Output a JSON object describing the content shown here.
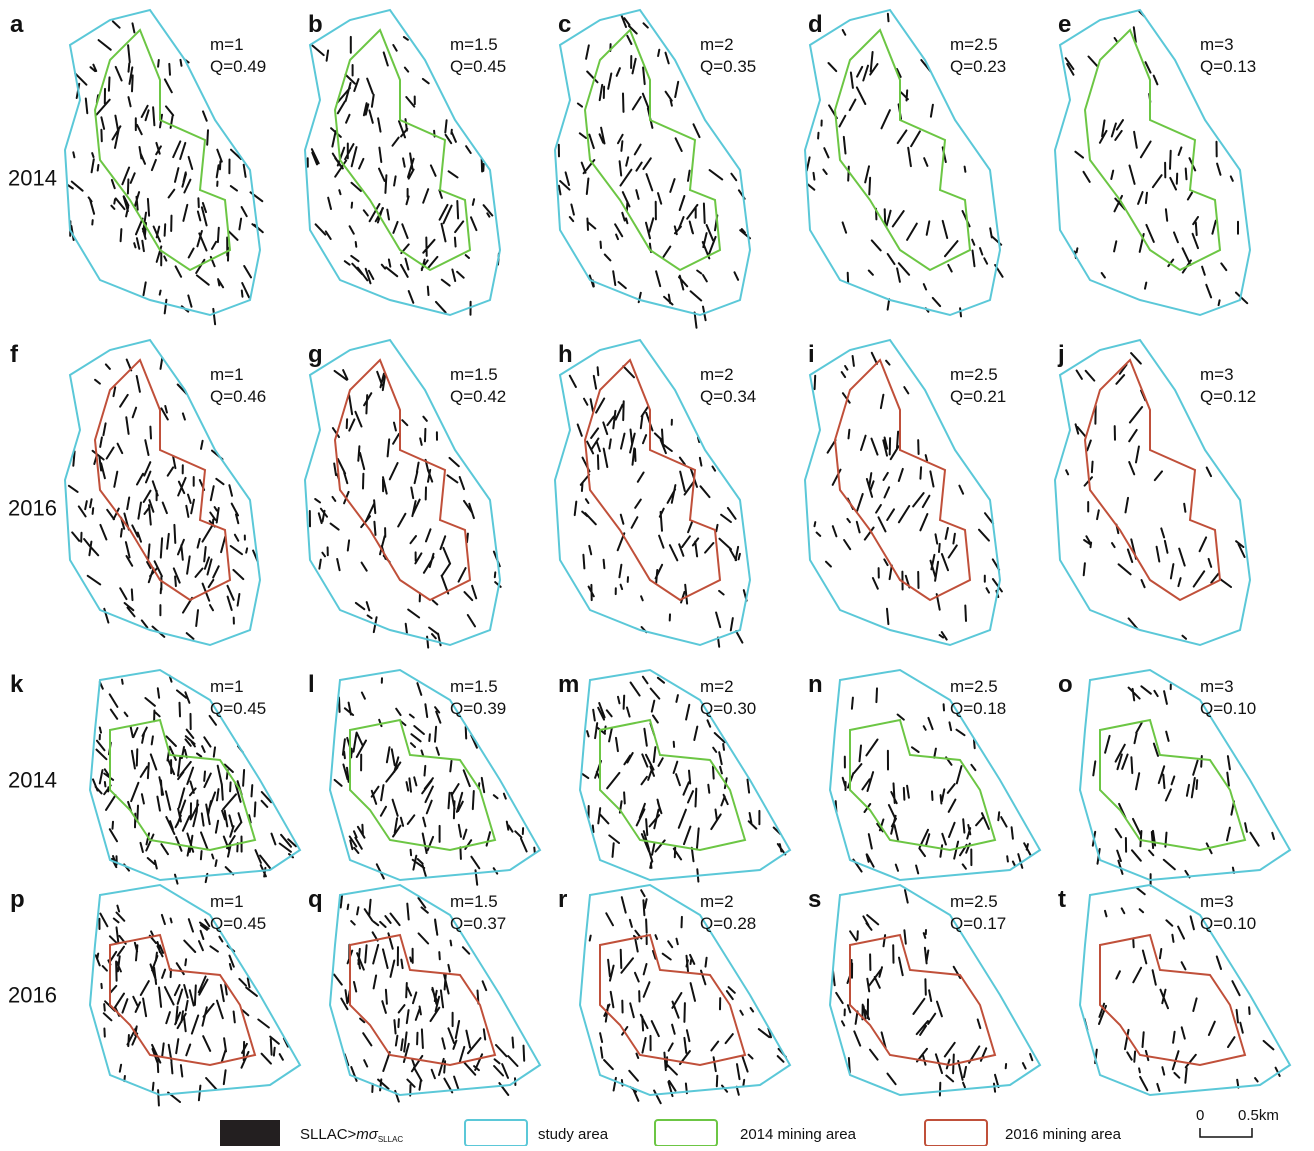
{
  "rows": [
    {
      "year": "2014",
      "panels": [
        {
          "letter": "a",
          "m": "m=1",
          "q": "Q=0.49"
        },
        {
          "letter": "b",
          "m": "m=1.5",
          "q": "Q=0.45"
        },
        {
          "letter": "c",
          "m": "m=2",
          "q": "Q=0.35"
        },
        {
          "letter": "d",
          "m": "m=2.5",
          "q": "Q=0.23"
        },
        {
          "letter": "e",
          "m": "m=3",
          "q": "Q=0.13"
        }
      ]
    },
    {
      "year": "2016",
      "panels": [
        {
          "letter": "f",
          "m": "m=1",
          "q": "Q=0.46"
        },
        {
          "letter": "g",
          "m": "m=1.5",
          "q": "Q=0.42"
        },
        {
          "letter": "h",
          "m": "m=2",
          "q": "Q=0.34"
        },
        {
          "letter": "i",
          "m": "m=2.5",
          "q": "Q=0.21"
        },
        {
          "letter": "j",
          "m": "m=3",
          "q": "Q=0.12"
        }
      ]
    },
    {
      "year": "2014",
      "panels": [
        {
          "letter": "k",
          "m": "m=1",
          "q": "Q=0.45"
        },
        {
          "letter": "l",
          "m": "m=1.5",
          "q": "Q=0.39"
        },
        {
          "letter": "m",
          "m": "m=2",
          "q": "Q=0.30"
        },
        {
          "letter": "n",
          "m": "m=2.5",
          "q": "Q=0.18"
        },
        {
          "letter": "o",
          "m": "m=3",
          "q": "Q=0.10"
        }
      ]
    },
    {
      "year": "2016",
      "panels": [
        {
          "letter": "p",
          "m": "m=1",
          "q": "Q=0.45"
        },
        {
          "letter": "q",
          "m": "m=1.5",
          "q": "Q=0.37"
        },
        {
          "letter": "r",
          "m": "m=2",
          "q": "Q=0.28"
        },
        {
          "letter": "s",
          "m": "m=2.5",
          "q": "Q=0.17"
        },
        {
          "letter": "t",
          "m": "m=3",
          "q": "Q=0.10"
        }
      ]
    }
  ],
  "legend": {
    "threshold": {
      "prefix": "SLLAC>",
      "symbol": "mσ",
      "subscript": "SLLAC"
    },
    "study": "study area",
    "mining2014": "2014 mining area",
    "mining2016": "2016 mining area"
  },
  "scale": {
    "start": "0",
    "end": "0.5km"
  }
}
